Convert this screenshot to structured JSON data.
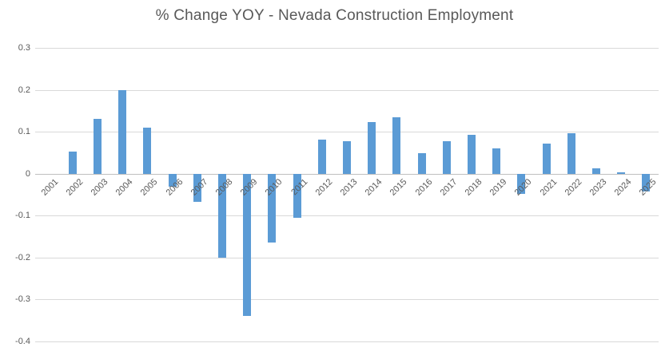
{
  "chart_data": {
    "type": "bar",
    "title": "% Change YOY - Nevada Construction Employment",
    "categories": [
      "2001",
      "2002",
      "2003",
      "2004",
      "2005",
      "2006",
      "2007",
      "2008",
      "2009",
      "2010",
      "2011",
      "2012",
      "2013",
      "2014",
      "2015",
      "2016",
      "2017",
      "2018",
      "2019",
      "2020",
      "2021",
      "2022",
      "2023",
      "2024",
      "2025"
    ],
    "values": [
      0,
      0.053,
      0.13,
      0.2,
      0.11,
      -0.031,
      -0.068,
      -0.2,
      -0.34,
      -0.165,
      -0.105,
      0.082,
      0.078,
      0.124,
      0.135,
      0.048,
      0.077,
      0.093,
      0.06,
      -0.048,
      0.072,
      0.097,
      0.013,
      0.003,
      -0.042
    ],
    "series_name": "% Change YOY",
    "xlabel": "",
    "ylabel": "",
    "ylim": [
      -0.4,
      0.3
    ],
    "yticks": [
      0.3,
      0.2,
      0.1,
      0,
      -0.1,
      -0.2,
      -0.3,
      -0.4
    ],
    "ytick_labels": [
      "0.3",
      "0.2",
      "0.1",
      "0",
      "-0.1",
      "-0.2",
      "-0.3",
      "-0.4"
    ],
    "x_tick_rotation_deg": -45,
    "grid": true,
    "legend": "none",
    "bar_color": "#5b9bd5",
    "gridline_color": "#d9d9d9",
    "axis_line_color": "#bfbfbf",
    "text_color": "#595959",
    "background_color": "#ffffff"
  }
}
